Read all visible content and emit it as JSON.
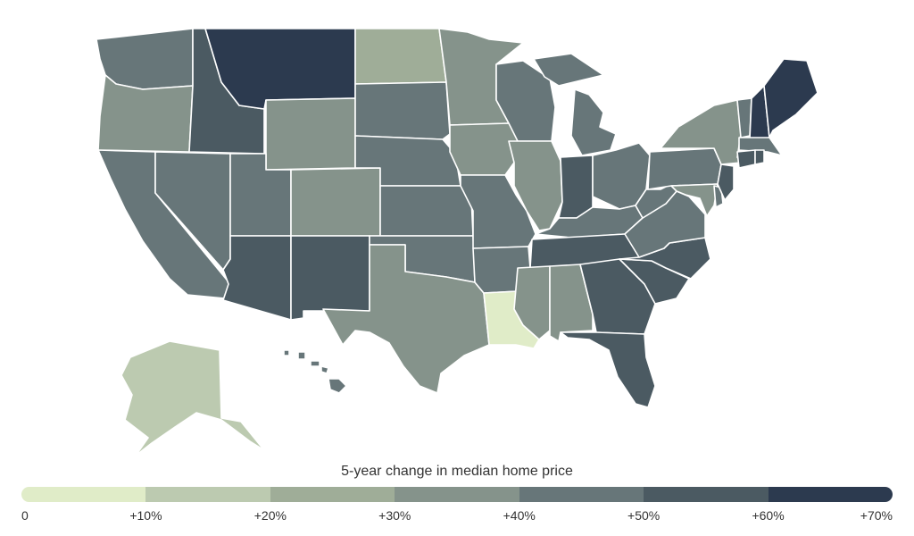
{
  "legend": {
    "title": "5-year change in median home price",
    "bins": [
      {
        "label": "0",
        "color": "#e0ecc8"
      },
      {
        "label": "+10%",
        "color": "#bccab0"
      },
      {
        "label": "+20%",
        "color": "#9fad98"
      },
      {
        "label": "+30%",
        "color": "#85938b"
      },
      {
        "label": "+40%",
        "color": "#677679"
      },
      {
        "label": "+50%",
        "color": "#4b5a62"
      },
      {
        "label": "+60%",
        "color": "#2c3a4f"
      }
    ],
    "max_label": "+70%"
  },
  "states": [
    {
      "code": "WA",
      "bin": 4
    },
    {
      "code": "OR",
      "bin": 3
    },
    {
      "code": "CA",
      "bin": 4
    },
    {
      "code": "NV",
      "bin": 4
    },
    {
      "code": "ID",
      "bin": 5
    },
    {
      "code": "MT",
      "bin": 6
    },
    {
      "code": "WY",
      "bin": 3
    },
    {
      "code": "UT",
      "bin": 4
    },
    {
      "code": "CO",
      "bin": 3
    },
    {
      "code": "AZ",
      "bin": 5
    },
    {
      "code": "NM",
      "bin": 5
    },
    {
      "code": "ND",
      "bin": 2
    },
    {
      "code": "SD",
      "bin": 4
    },
    {
      "code": "NE",
      "bin": 4
    },
    {
      "code": "KS",
      "bin": 4
    },
    {
      "code": "OK",
      "bin": 4
    },
    {
      "code": "TX",
      "bin": 3
    },
    {
      "code": "MN",
      "bin": 3
    },
    {
      "code": "IA",
      "bin": 3
    },
    {
      "code": "MO",
      "bin": 4
    },
    {
      "code": "AR",
      "bin": 4
    },
    {
      "code": "LA",
      "bin": 0
    },
    {
      "code": "WI",
      "bin": 4
    },
    {
      "code": "IL",
      "bin": 3
    },
    {
      "code": "MI",
      "bin": 4
    },
    {
      "code": "IN",
      "bin": 5
    },
    {
      "code": "OH",
      "bin": 4
    },
    {
      "code": "KY",
      "bin": 4
    },
    {
      "code": "TN",
      "bin": 5
    },
    {
      "code": "MS",
      "bin": 3
    },
    {
      "code": "AL",
      "bin": 3
    },
    {
      "code": "GA",
      "bin": 5
    },
    {
      "code": "FL",
      "bin": 5
    },
    {
      "code": "SC",
      "bin": 5
    },
    {
      "code": "NC",
      "bin": 5
    },
    {
      "code": "VA",
      "bin": 4
    },
    {
      "code": "WV",
      "bin": 4
    },
    {
      "code": "PA",
      "bin": 4
    },
    {
      "code": "NY",
      "bin": 3
    },
    {
      "code": "VT",
      "bin": 4
    },
    {
      "code": "NH",
      "bin": 6
    },
    {
      "code": "ME",
      "bin": 6
    },
    {
      "code": "MA",
      "bin": 4
    },
    {
      "code": "CT",
      "bin": 5
    },
    {
      "code": "RI",
      "bin": 5
    },
    {
      "code": "NJ",
      "bin": 5
    },
    {
      "code": "DE",
      "bin": 4
    },
    {
      "code": "MD",
      "bin": 3
    },
    {
      "code": "AK",
      "bin": 1
    },
    {
      "code": "HI",
      "bin": 4
    }
  ]
}
